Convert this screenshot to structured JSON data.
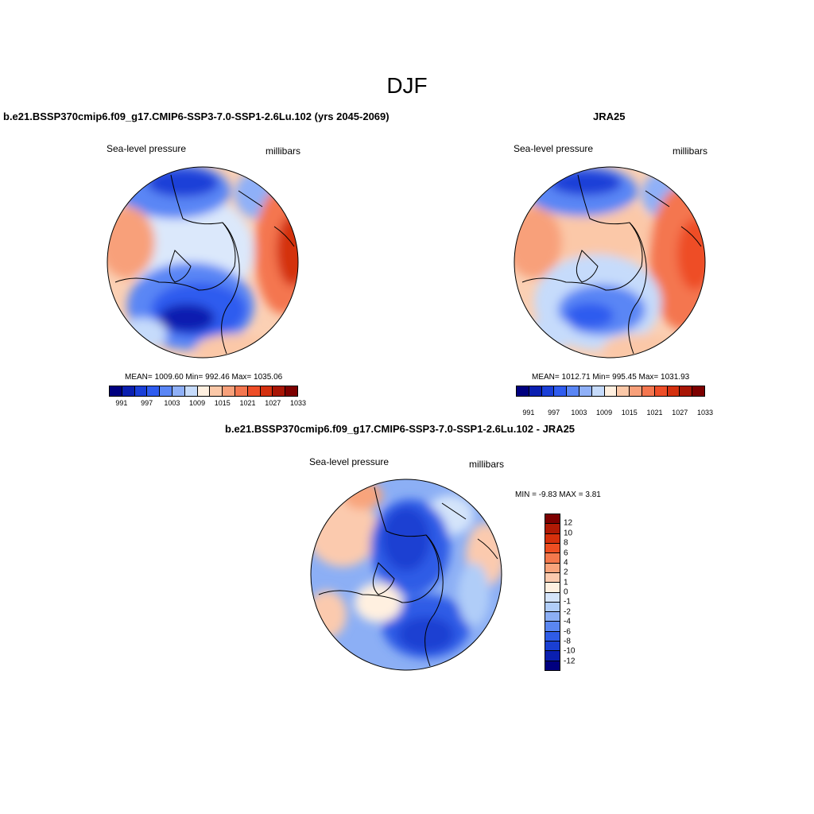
{
  "figure": {
    "title": "DJF"
  },
  "panels": [
    {
      "title": "b.e21.BSSP370cmip6.f09_g17.CMIP6-SSP3-7.0-SSP1-2.6Lu.102 (yrs 2045-2069)",
      "left_label": "Sea-level pressure",
      "right_label": "millibars",
      "stats": "MEAN= 1009.60  Min= 992.46  Max= 1035.06"
    },
    {
      "title": "JRA25",
      "left_label": "Sea-level pressure",
      "right_label": "millibars",
      "stats": "MEAN= 1012.71  Min= 995.45  Max= 1031.93"
    },
    {
      "title": "b.e21.BSSP370cmip6.f09_g17.CMIP6-SSP3-7.0-SSP1-2.6Lu.102 - JRA25",
      "left_label": "Sea-level pressure",
      "right_label": "millibars",
      "stats": "MIN =  -9.83 MAX =   3.81"
    }
  ],
  "abs_colorbar": {
    "colors": [
      "#00007f",
      "#0a1fb0",
      "#1a3fd8",
      "#2f5cef",
      "#5a86f5",
      "#8fb0f8",
      "#c6dbfb",
      "#fff0e0",
      "#fbc8a8",
      "#f8a07a",
      "#f4764f",
      "#ee4e28",
      "#d4300f",
      "#a81505",
      "#7d0000"
    ],
    "tick_labels": [
      "991",
      "997",
      "1003",
      "1009",
      "1015",
      "1021",
      "1027",
      "1033"
    ]
  },
  "diff_colorbar": {
    "colors": [
      "#7d0000",
      "#b01a05",
      "#d6300c",
      "#ee4e22",
      "#f4784c",
      "#f8a47c",
      "#fbcaae",
      "#fff0e0",
      "#d4e4fa",
      "#b0cdf8",
      "#8caff5",
      "#5a86f0",
      "#2f5ce6",
      "#1a3fd2",
      "#0a1fb0",
      "#00007f"
    ],
    "tick_labels": [
      "12",
      "10",
      "8",
      "6",
      "4",
      "2",
      "1",
      "0",
      "-1",
      "-2",
      "-4",
      "-6",
      "-8",
      "-10",
      "-12"
    ]
  }
}
